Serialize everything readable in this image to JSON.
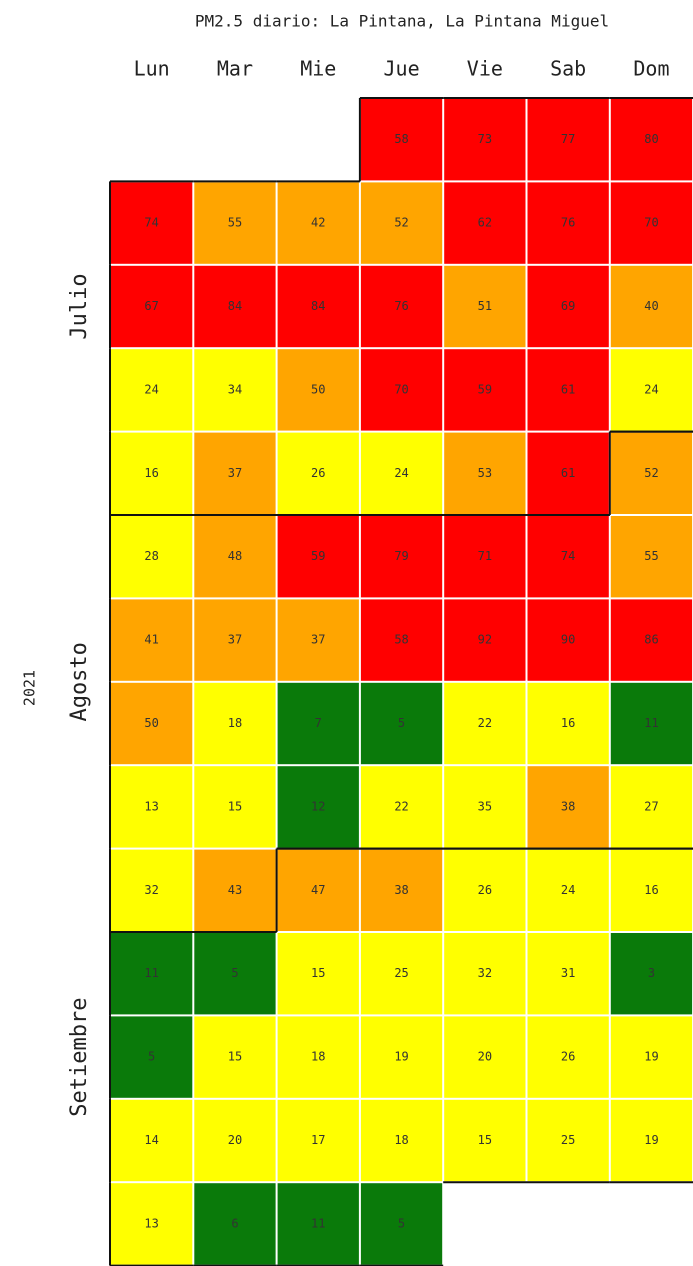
{
  "chart_data": {
    "type": "heatmap",
    "title": "PM2.5 diario: La Pintana, La Pintana Miguel",
    "columns": [
      "Lun",
      "Mar",
      "Mie",
      "Jue",
      "Vie",
      "Sab",
      "Dom"
    ],
    "year": "2021",
    "months": [
      "Julio",
      "Agosto",
      "Setiembre"
    ],
    "values": [
      [
        null,
        null,
        null,
        58,
        73,
        77,
        80
      ],
      [
        74,
        55,
        42,
        52,
        62,
        76,
        70
      ],
      [
        67,
        84,
        84,
        76,
        51,
        69,
        40
      ],
      [
        24,
        34,
        50,
        70,
        59,
        61,
        24
      ],
      [
        16,
        37,
        26,
        24,
        53,
        61,
        52
      ],
      [
        28,
        48,
        59,
        79,
        71,
        74,
        55
      ],
      [
        41,
        37,
        37,
        58,
        92,
        90,
        86
      ],
      [
        50,
        18,
        7,
        5,
        22,
        16,
        11
      ],
      [
        13,
        15,
        12,
        22,
        35,
        38,
        27
      ],
      [
        32,
        43,
        47,
        38,
        26,
        24,
        16
      ],
      [
        11,
        5,
        15,
        25,
        32,
        31,
        3
      ],
      [
        5,
        15,
        18,
        19,
        20,
        26,
        19
      ],
      [
        14,
        20,
        17,
        18,
        15,
        25,
        19
      ],
      [
        13,
        6,
        11,
        5,
        null,
        null,
        null
      ]
    ],
    "color_bounds": [
      13,
      37,
      58
    ],
    "colors": [
      "#0a7a0a",
      "#ffff00",
      "#ffa500",
      "#ff0000"
    ]
  }
}
